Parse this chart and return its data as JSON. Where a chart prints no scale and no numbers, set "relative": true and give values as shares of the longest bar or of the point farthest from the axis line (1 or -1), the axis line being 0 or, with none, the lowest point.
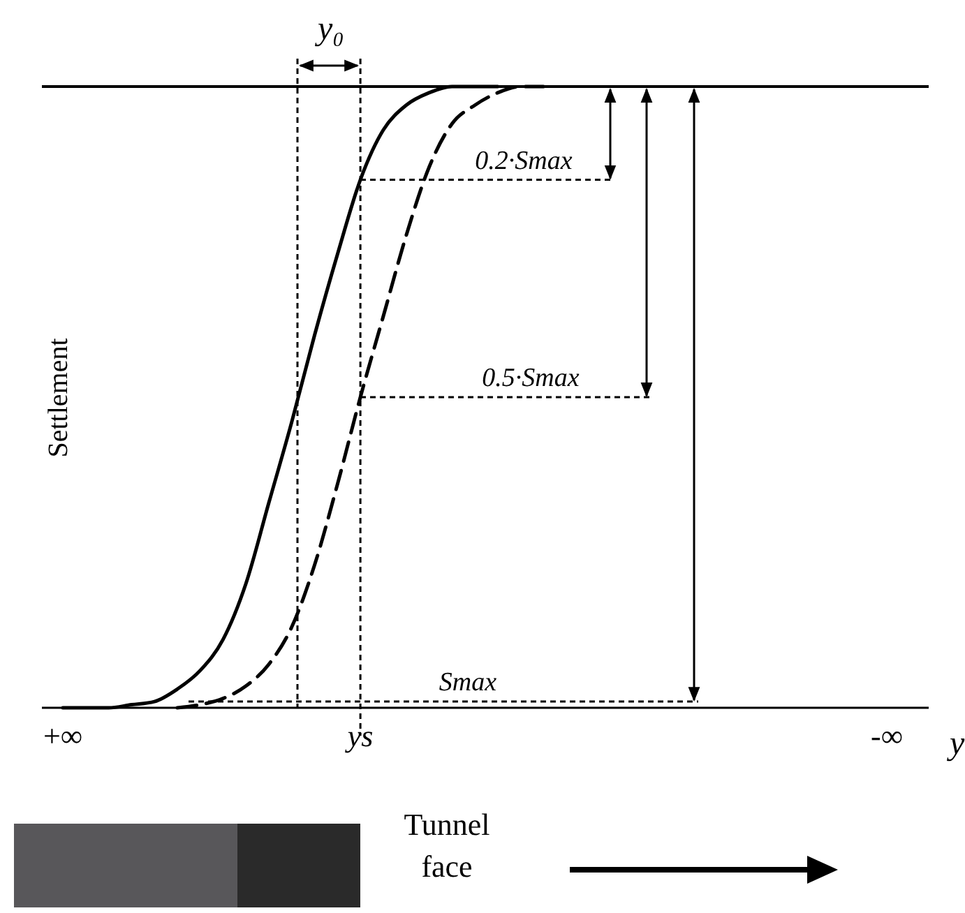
{
  "chart_data": {
    "type": "line",
    "relative": true,
    "tick_labels": "x",
    "ylabel": "Settlement",
    "xlabel": "y",
    "categories": [
      "+∞",
      null,
      null,
      null,
      null,
      null,
      null,
      null,
      null,
      null,
      null,
      null,
      null,
      "ys",
      null,
      null,
      null,
      null,
      null,
      null,
      null,
      null,
      null,
      null,
      null,
      null,
      null,
      null,
      null,
      null,
      null,
      null,
      null,
      null,
      null,
      null,
      "-∞"
    ],
    "series": [
      {
        "color": "#000000",
        "line_style": "solid",
        "values": [
          0,
          0,
          0,
          0.005,
          0.01,
          0.03,
          0.06,
          0.11,
          0.2,
          0.33,
          0.46,
          0.6,
          0.73,
          0.85,
          0.93,
          0.97,
          0.99,
          1,
          1,
          1,
          null,
          null,
          null,
          null,
          null,
          null,
          null,
          null,
          null,
          null,
          null,
          null,
          null,
          null,
          null,
          null,
          null
        ]
      },
      {
        "color": "#000000",
        "line_style": "dashed",
        "values": [
          null,
          null,
          null,
          null,
          null,
          0,
          0.005,
          0.015,
          0.035,
          0.07,
          0.13,
          0.23,
          0.36,
          0.5,
          0.63,
          0.76,
          0.87,
          0.94,
          0.97,
          0.99,
          1,
          1,
          null,
          null,
          null,
          null,
          null,
          null,
          null,
          null,
          null,
          null,
          null,
          null,
          null,
          null,
          null
        ]
      }
    ],
    "ref_lines": [
      {
        "axis": "y",
        "value": 1,
        "color": "#000000",
        "line_style": "solid"
      },
      {
        "axis": "y",
        "value": 0.85,
        "color": "#000000",
        "line_style": "dotted",
        "label": "0.2·Smax"
      },
      {
        "axis": "y",
        "value": 0.5,
        "color": "#000000",
        "line_style": "dotted",
        "label": "0.5·Smax"
      },
      {
        "axis": "y",
        "value": 0.01,
        "color": "#000000",
        "line_style": "dotted",
        "label": "Smax"
      }
    ],
    "annotations": [
      "y₀",
      "Tunnel face"
    ]
  }
}
